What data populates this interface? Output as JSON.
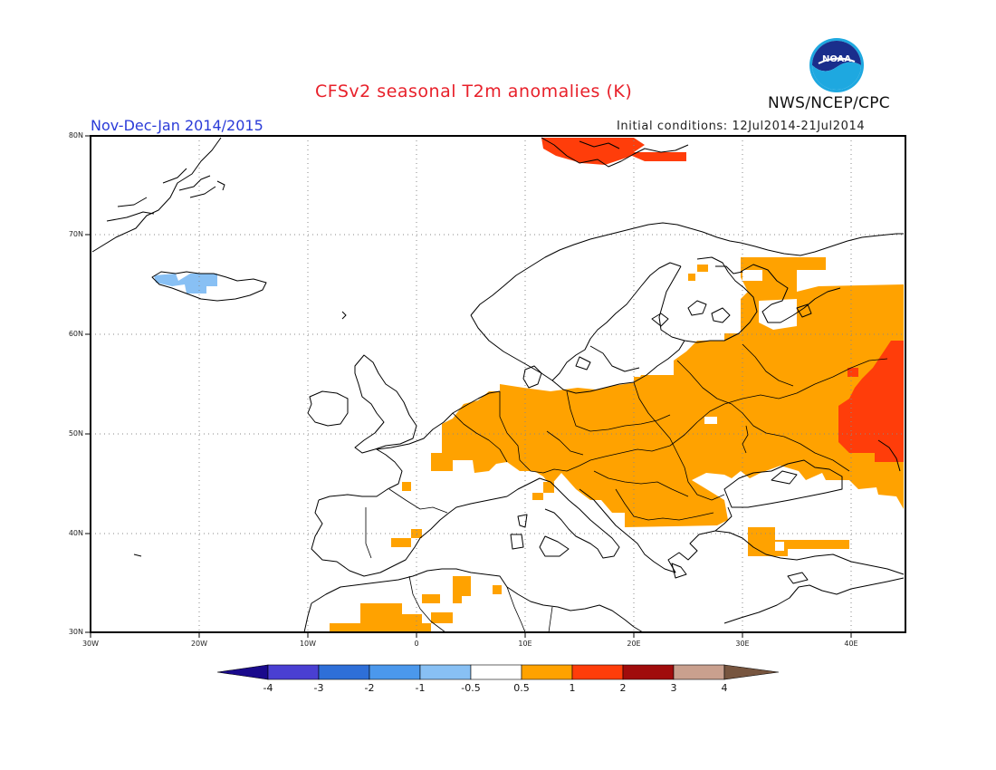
{
  "header": {
    "title": "CFSv2 seasonal T2m anomalies (K)",
    "season": "Nov-Dec-Jan 2014/2015",
    "initial_conditions": "Initial conditions: 12Jul2014-21Jul2014",
    "agency": "NWS/NCEP/CPC",
    "logo_text": "NOAA"
  },
  "map": {
    "projection": "lat-lon",
    "lon_range": [
      -30,
      45
    ],
    "lat_range": [
      30,
      80
    ],
    "lat_ticks": [
      "30N",
      "40N",
      "50N",
      "60N",
      "70N",
      "80N"
    ],
    "lon_ticks": [
      "30W",
      "20W",
      "10W",
      "0",
      "10E",
      "20E",
      "30E",
      "40E"
    ],
    "grid": "dotted"
  },
  "colorbar": {
    "tick_labels": [
      "-4",
      "-3",
      "-2",
      "-1",
      "-0.5",
      "0.5",
      "1",
      "2",
      "3",
      "4"
    ],
    "colors": [
      "#1a0a8c",
      "#4a3fd2",
      "#2e6fd8",
      "#4b98ec",
      "#88c0f4",
      "#ffffff",
      "#ffa200",
      "#ff3d0a",
      "#a00c0c",
      "#c9a08e",
      "#77553f"
    ]
  },
  "anomaly_regions": [
    {
      "name": "Iceland",
      "category": "-1 to -0.5",
      "color": "#88c0f4"
    },
    {
      "name": "Svalbard",
      "category": "1 to 2",
      "color": "#ff3d0a"
    },
    {
      "name": "Central and Eastern Europe",
      "category": "0.5 to 1",
      "color": "#ffa200"
    },
    {
      "name": "Western Russia",
      "category": "0.5 to 1",
      "color": "#ffa200"
    },
    {
      "name": "Southern Russia",
      "category": "1 to 2",
      "color": "#ff3d0a"
    },
    {
      "name": "Iberia and North Africa",
      "category": "0.5 to 1",
      "color": "#ffa200"
    },
    {
      "name": "Turkey",
      "category": "0.5 to 1",
      "color": "#ffa200"
    }
  ]
}
